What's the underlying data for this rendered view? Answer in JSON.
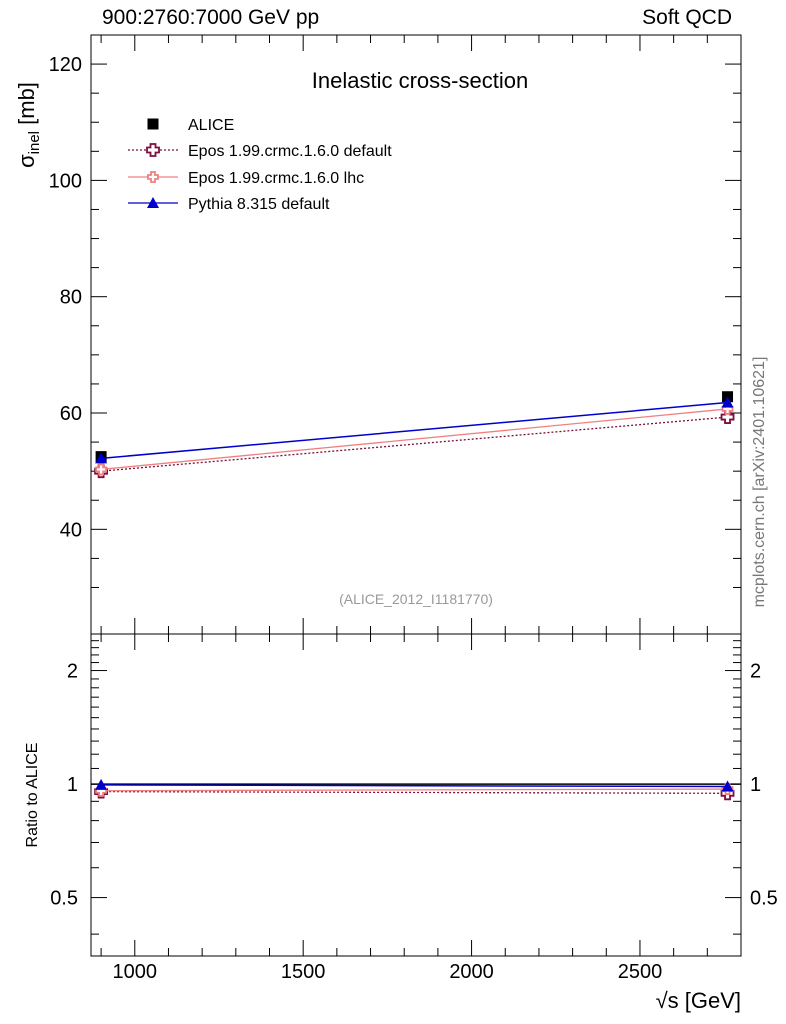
{
  "header": {
    "left": "900:2760:7000 GeV pp",
    "right": "Soft QCD"
  },
  "watermark": "mcplots.cern.ch [arXiv:2401.10621]",
  "chart_data": {
    "type": "line",
    "title": "Inelastic cross-section",
    "reference_label": "(ALICE_2012_I1181770)",
    "xlabel": "√s [GeV]",
    "xlim": [
      870,
      2800
    ],
    "x_ticks": [
      1000,
      1500,
      2000,
      2500
    ],
    "main": {
      "ylabel_symbol": "σ",
      "ylabel_sub": "inel",
      "ylabel_unit": "[mb]",
      "ylim": [
        22,
        125
      ],
      "y_ticks": [
        40,
        60,
        80,
        100,
        120
      ],
      "series": [
        {
          "name": "ALICE",
          "style": "data",
          "color": "#000000",
          "x": [
            900,
            2760
          ],
          "y": [
            52.5,
            62.8
          ]
        },
        {
          "name": "Epos 1.99.crmc.1.6.0 default",
          "style": "cross-dotted",
          "color": "#7a0f3c",
          "x": [
            900,
            2760
          ],
          "y": [
            50.0,
            59.3
          ]
        },
        {
          "name": "Epos 1.99.crmc.1.6.0 lhc",
          "style": "cross-solid",
          "color": "#f08080",
          "x": [
            900,
            2760
          ],
          "y": [
            50.3,
            60.7
          ]
        },
        {
          "name": "Pythia 8.315 default",
          "style": "triangle-solid",
          "color": "#0000cc",
          "x": [
            900,
            2760
          ],
          "y": [
            52.2,
            61.8
          ]
        }
      ]
    },
    "ratio": {
      "ylabel": "Ratio to ALICE",
      "ylim": [
        0.35,
        2.5
      ],
      "y_ticks": [
        0.5,
        1,
        2
      ],
      "y_tick_labels": [
        "0.5",
        "1",
        "2"
      ],
      "series": [
        {
          "name": "ALICE",
          "x": [
            900,
            2760
          ],
          "y": [
            1.0,
            1.0
          ]
        },
        {
          "name": "Epos 1.99.crmc.1.6.0 default",
          "x": [
            900,
            2760
          ],
          "y": [
            0.955,
            0.945
          ]
        },
        {
          "name": "Epos 1.99.crmc.1.6.0 lhc",
          "x": [
            900,
            2760
          ],
          "y": [
            0.96,
            0.97
          ]
        },
        {
          "name": "Pythia 8.315 default",
          "x": [
            900,
            2760
          ],
          "y": [
            0.995,
            0.985
          ]
        }
      ]
    }
  }
}
